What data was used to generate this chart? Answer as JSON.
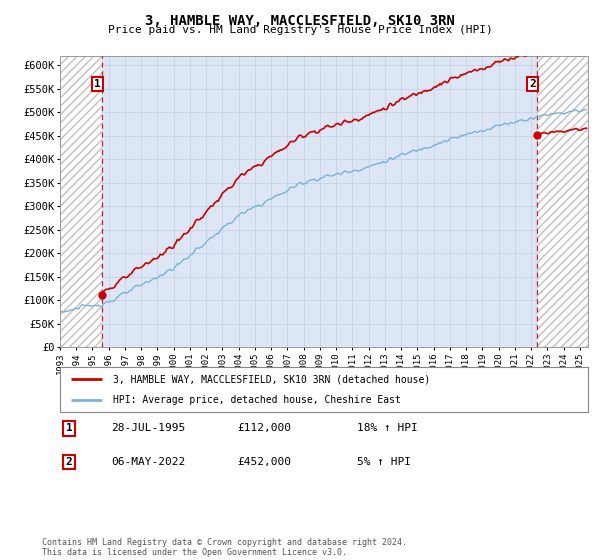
{
  "title": "3, HAMBLE WAY, MACCLESFIELD, SK10 3RN",
  "subtitle": "Price paid vs. HM Land Registry's House Price Index (HPI)",
  "ylabel_ticks": [
    "£0",
    "£50K",
    "£100K",
    "£150K",
    "£200K",
    "£250K",
    "£300K",
    "£350K",
    "£400K",
    "£450K",
    "£500K",
    "£550K",
    "£600K"
  ],
  "ytick_values": [
    0,
    50000,
    100000,
    150000,
    200000,
    250000,
    300000,
    350000,
    400000,
    450000,
    500000,
    550000,
    600000
  ],
  "ylim": [
    0,
    620000
  ],
  "xlim_start": 1993.0,
  "xlim_end": 2025.5,
  "xticks": [
    1993,
    1994,
    1995,
    1996,
    1997,
    1998,
    1999,
    2000,
    2001,
    2002,
    2003,
    2004,
    2005,
    2006,
    2007,
    2008,
    2009,
    2010,
    2011,
    2012,
    2013,
    2014,
    2015,
    2016,
    2017,
    2018,
    2019,
    2020,
    2021,
    2022,
    2023,
    2024,
    2025
  ],
  "hpi_color": "#7ab3d9",
  "price_color": "#cc0000",
  "hatch_color": "#c0c0c0",
  "grid_color": "#c8d4e8",
  "bg_color": "#dce6f5",
  "sale1_x": 1995.58,
  "sale1_y": 112000,
  "sale2_x": 2022.35,
  "sale2_y": 452000,
  "sale1_label": "1",
  "sale2_label": "2",
  "sale1_date": "28-JUL-1995",
  "sale1_price": "£112,000",
  "sale1_hpi": "18% ↑ HPI",
  "sale2_date": "06-MAY-2022",
  "sale2_price": "£452,000",
  "sale2_hpi": "5% ↑ HPI",
  "legend_line1": "3, HAMBLE WAY, MACCLESFIELD, SK10 3RN (detached house)",
  "legend_line2": "HPI: Average price, detached house, Cheshire East",
  "footnote": "Contains HM Land Registry data © Crown copyright and database right 2024.\nThis data is licensed under the Open Government Licence v3.0."
}
